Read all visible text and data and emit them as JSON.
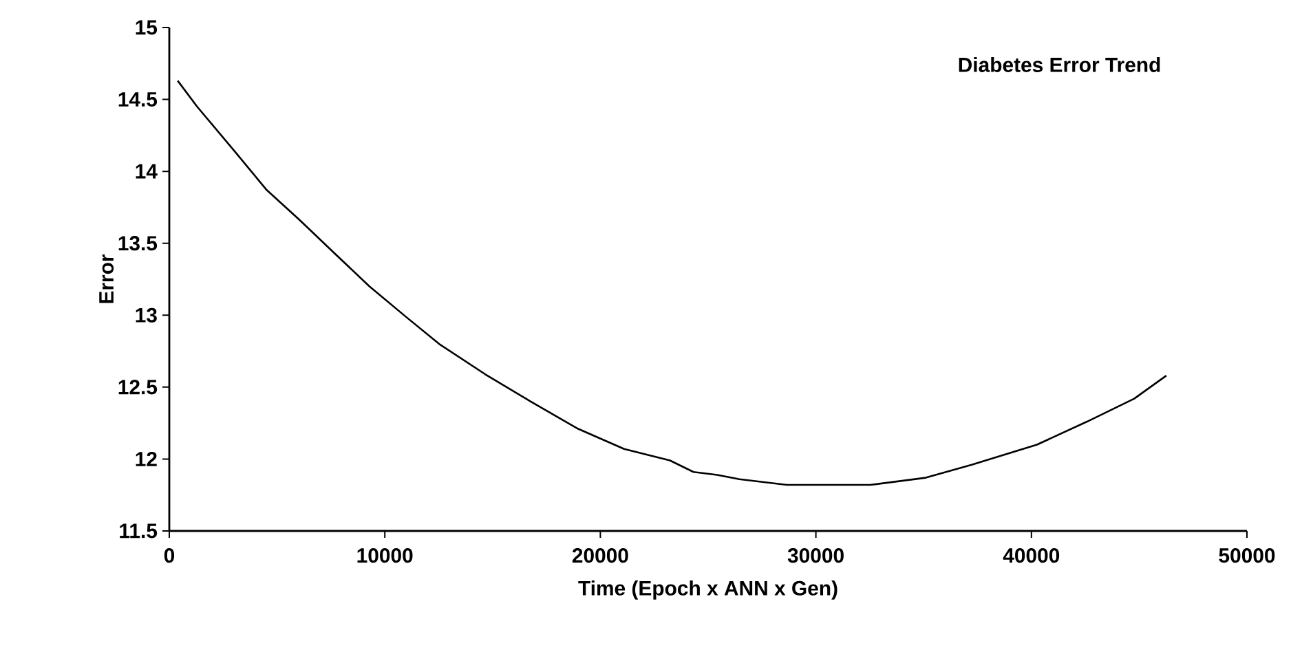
{
  "chart_data": {
    "type": "line",
    "title": "Diabetes Error Trend",
    "xlabel": "Time (Epoch x ANN x Gen)",
    "ylabel": "Error",
    "x": [
      390,
      1290,
      3030,
      4520,
      6060,
      7740,
      9290,
      10970,
      12520,
      14650,
      16770,
      18970,
      21100,
      23230,
      24320,
      25420,
      26450,
      28650,
      32520,
      35100,
      37230,
      40260,
      42580,
      44770,
      46260
    ],
    "series": [
      {
        "color": "#000000",
        "values": [
          14.63,
          14.45,
          14.14,
          13.87,
          13.66,
          13.42,
          13.2,
          12.99,
          12.8,
          12.59,
          12.4,
          12.21,
          12.07,
          11.99,
          11.91,
          11.89,
          11.86,
          11.82,
          11.82,
          11.87,
          11.96,
          12.1,
          12.26,
          12.42,
          12.58
        ]
      }
    ],
    "xlim": [
      0,
      50000
    ],
    "ylim": [
      11.5,
      15
    ],
    "xticks": [
      0,
      10000,
      20000,
      30000,
      40000,
      50000
    ],
    "yticks": [
      11.5,
      12,
      12.5,
      13,
      13.5,
      14,
      14.5,
      15
    ],
    "grid": false,
    "marker": "none",
    "line_style": "solid"
  }
}
